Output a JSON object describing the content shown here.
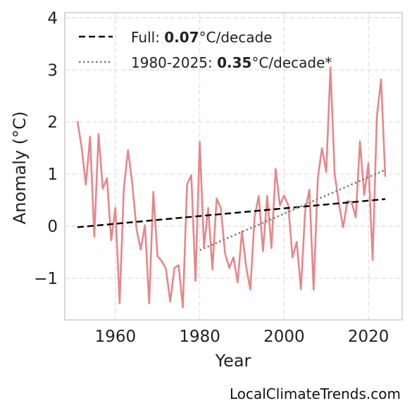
{
  "chart_data": {
    "type": "line",
    "xlabel": "Year",
    "ylabel": "Anomaly (°C)",
    "xlim": [
      1948,
      2028
    ],
    "ylim": [
      -1.8,
      4.1
    ],
    "xticks": [
      1960,
      1980,
      2000,
      2020
    ],
    "yticks": [
      -1,
      0,
      1,
      2,
      3,
      4
    ],
    "ytick_labels": [
      "−1",
      "0",
      "1",
      "2",
      "3",
      "4"
    ],
    "grid": true,
    "legend_position": "top-left",
    "colors": {
      "series": "#e6878a",
      "full_trend": "#000000",
      "recent_trend": "#808080",
      "grid": "#dcdcdc",
      "frame": "#cccccc"
    },
    "series": [
      {
        "x": [
          1951,
          1952,
          1953,
          1954,
          1955,
          1956,
          1957,
          1958,
          1959,
          1960,
          1961,
          1962,
          1963,
          1964,
          1965,
          1966,
          1967,
          1968,
          1969,
          1970,
          1971,
          1972,
          1973,
          1974,
          1975,
          1976,
          1977,
          1978,
          1979,
          1980,
          1981,
          1982,
          1983,
          1984,
          1985,
          1986,
          1987,
          1988,
          1989,
          1990,
          1991,
          1992,
          1993,
          1994,
          1995,
          1996,
          1997,
          1998,
          1999,
          2000,
          2001,
          2002,
          2003,
          2004,
          2005,
          2006,
          2007,
          2008,
          2009,
          2010,
          2011,
          2012,
          2013,
          2014,
          2015,
          2016,
          2017,
          2018,
          2019,
          2020,
          2021,
          2022,
          2023,
          2024
        ],
        "values": [
          2.02,
          1.5,
          0.8,
          1.72,
          -0.2,
          1.77,
          0.72,
          0.92,
          -0.27,
          0.35,
          -1.48,
          0.72,
          1.46,
          0.82,
          -0.05,
          -0.45,
          0.02,
          -1.48,
          0.66,
          -0.58,
          -0.67,
          -0.82,
          -1.45,
          -0.8,
          -0.75,
          -1.56,
          0.8,
          0.98,
          -1.05,
          1.62,
          -0.4,
          0.35,
          -0.83,
          0.53,
          0.35,
          -0.52,
          -0.8,
          -0.6,
          -1.08,
          -0.1,
          -0.78,
          -1.22,
          0.17,
          0.58,
          -0.48,
          0.58,
          -0.42,
          1.1,
          0.4,
          0.59,
          0.4,
          -0.6,
          -0.3,
          -1.21,
          0.3,
          0.7,
          -1.22,
          0.93,
          1.5,
          1.04,
          3.05,
          1.0,
          0.44,
          -0.02,
          0.48,
          0.47,
          0.17,
          1.63,
          0.6,
          1.21,
          -0.65,
          2.1,
          2.82,
          0.95
        ]
      }
    ],
    "trend_lines": [
      {
        "label_prefix": "Full: ",
        "value": "0.07",
        "unit": "°C/decade",
        "style": "dashed",
        "x": [
          1951,
          2024
        ],
        "y": [
          -0.02,
          0.52
        ]
      },
      {
        "label_prefix": "1980-2025: ",
        "value": "0.35",
        "unit": "°C/decade*",
        "style": "dotted",
        "x": [
          1980,
          2024
        ],
        "y": [
          -0.46,
          1.08
        ]
      }
    ]
  },
  "footer": {
    "source": "LocalClimateTrends.com"
  }
}
